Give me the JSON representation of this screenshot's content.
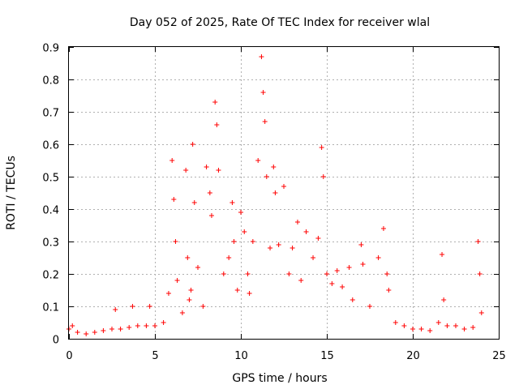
{
  "chart_data": {
    "type": "scatter",
    "title": "Day 052 of 2025, Rate Of TEC Index for receiver wlal",
    "xlabel": "GPS time / hours",
    "ylabel": "ROTI / TECUs",
    "xlim": [
      0,
      25
    ],
    "ylim": [
      0,
      0.9
    ],
    "xticks": [
      0,
      5,
      10,
      15,
      20,
      25
    ],
    "yticks": [
      0,
      0.1,
      0.2,
      0.3,
      0.4,
      0.5,
      0.6,
      0.7,
      0.8,
      0.9
    ],
    "grid": true,
    "marker": "+",
    "color": "#ff0000",
    "x": [
      0.0,
      0.2,
      0.5,
      1.0,
      1.5,
      2.0,
      2.5,
      2.7,
      3.0,
      3.5,
      3.7,
      4.0,
      4.5,
      4.7,
      5.0,
      5.5,
      5.8,
      6.0,
      6.1,
      6.2,
      6.3,
      6.6,
      6.8,
      6.9,
      7.0,
      7.1,
      7.2,
      7.3,
      7.5,
      7.8,
      8.0,
      8.2,
      8.3,
      8.5,
      8.6,
      8.7,
      9.0,
      9.3,
      9.5,
      9.6,
      9.8,
      10.0,
      10.2,
      10.4,
      10.5,
      10.7,
      11.0,
      11.2,
      11.3,
      11.4,
      11.5,
      11.7,
      11.9,
      12.0,
      12.2,
      12.5,
      12.8,
      13.0,
      13.3,
      13.5,
      13.8,
      14.2,
      14.5,
      14.7,
      14.8,
      15.0,
      15.3,
      15.6,
      15.9,
      16.3,
      16.5,
      17.0,
      17.1,
      17.5,
      18.0,
      18.3,
      18.5,
      18.6,
      19.0,
      19.5,
      20.0,
      20.5,
      21.0,
      21.5,
      21.7,
      21.8,
      22.0,
      22.5,
      23.0,
      23.5,
      23.8,
      23.9,
      24.0
    ],
    "y": [
      0.03,
      0.04,
      0.02,
      0.015,
      0.02,
      0.025,
      0.03,
      0.09,
      0.03,
      0.035,
      0.1,
      0.04,
      0.04,
      0.1,
      0.04,
      0.05,
      0.14,
      0.55,
      0.43,
      0.3,
      0.18,
      0.08,
      0.52,
      0.25,
      0.12,
      0.15,
      0.6,
      0.42,
      0.22,
      0.1,
      0.53,
      0.45,
      0.38,
      0.73,
      0.66,
      0.52,
      0.2,
      0.25,
      0.42,
      0.3,
      0.15,
      0.39,
      0.33,
      0.2,
      0.14,
      0.3,
      0.55,
      0.87,
      0.76,
      0.67,
      0.5,
      0.28,
      0.53,
      0.45,
      0.29,
      0.47,
      0.2,
      0.28,
      0.36,
      0.18,
      0.33,
      0.25,
      0.31,
      0.59,
      0.5,
      0.2,
      0.17,
      0.21,
      0.16,
      0.22,
      0.12,
      0.29,
      0.23,
      0.1,
      0.25,
      0.34,
      0.2,
      0.15,
      0.05,
      0.04,
      0.03,
      0.03,
      0.025,
      0.05,
      0.26,
      0.12,
      0.04,
      0.04,
      0.03,
      0.035,
      0.3,
      0.2,
      0.08
    ]
  }
}
